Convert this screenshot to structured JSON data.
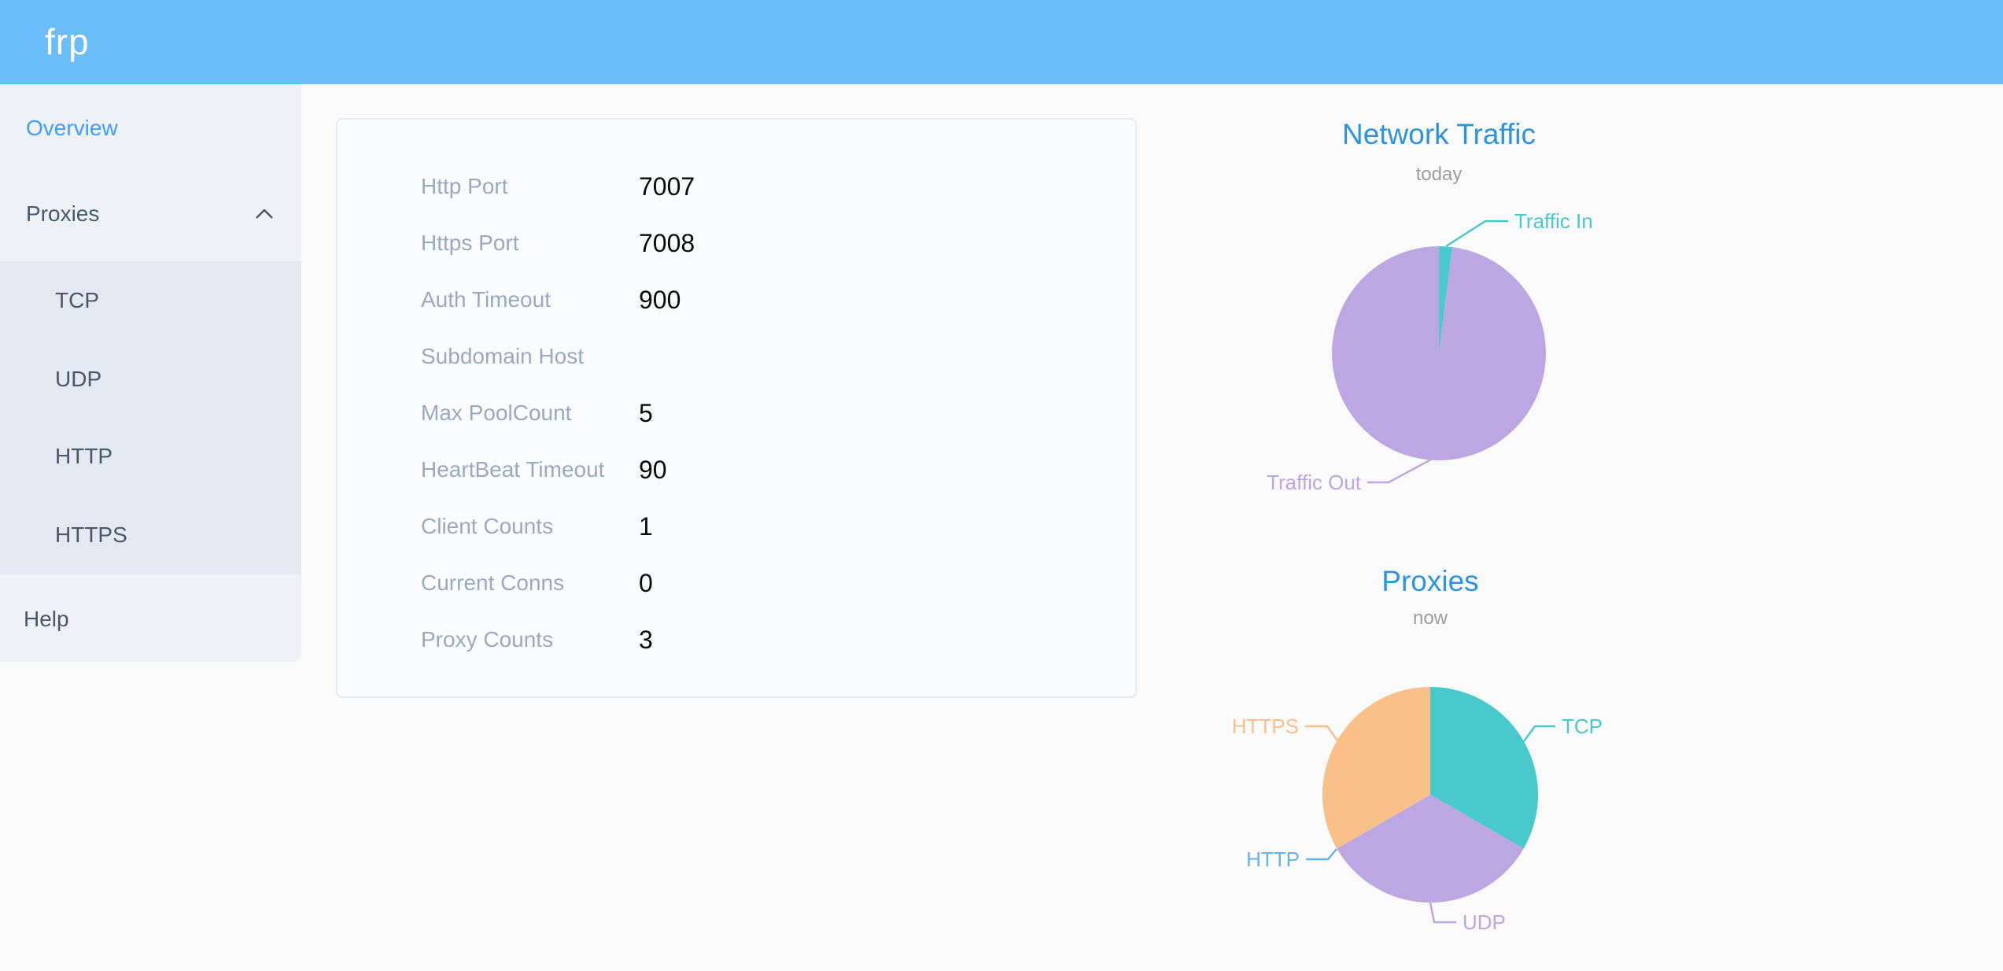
{
  "header": {
    "logo": "frp"
  },
  "sidebar": {
    "items": [
      {
        "label": "Overview",
        "active": true
      },
      {
        "label": "Proxies",
        "expanded": true
      },
      {
        "label": "TCP"
      },
      {
        "label": "UDP"
      },
      {
        "label": "HTTP"
      },
      {
        "label": "HTTPS"
      },
      {
        "label": "Help"
      }
    ]
  },
  "server_info": {
    "rows": [
      {
        "label": "Http Port",
        "value": "7007"
      },
      {
        "label": "Https Port",
        "value": "7008"
      },
      {
        "label": "Auth Timeout",
        "value": "900"
      },
      {
        "label": "Subdomain Host",
        "value": ""
      },
      {
        "label": "Max PoolCount",
        "value": "5"
      },
      {
        "label": "HeartBeat Timeout",
        "value": "90"
      },
      {
        "label": "Client Counts",
        "value": "1"
      },
      {
        "label": "Current Conns",
        "value": "0"
      },
      {
        "label": "Proxy Counts",
        "value": "3"
      }
    ]
  },
  "chart_data": [
    {
      "type": "pie",
      "title": "Network Traffic",
      "subtitle": "today",
      "legend_position": "none",
      "series": [
        {
          "name": "Traffic In",
          "value": 2,
          "color": "#49c9cc"
        },
        {
          "name": "Traffic Out",
          "value": 98,
          "color": "#bda7e2"
        }
      ]
    },
    {
      "type": "pie",
      "title": "Proxies",
      "subtitle": "now",
      "legend_position": "none",
      "series": [
        {
          "name": "TCP",
          "value": 1,
          "color": "#49c9cc"
        },
        {
          "name": "UDP",
          "value": 1,
          "color": "#bda7e2"
        },
        {
          "name": "HTTP",
          "value": 0,
          "color": "#64b2f2"
        },
        {
          "name": "HTTPS",
          "value": 1,
          "color": "#f9c089"
        }
      ]
    }
  ],
  "colors": {
    "header_bg": "#6abdf8",
    "sidebar_bg": "#eef1f6",
    "submenu_bg": "#e4e8f1",
    "menu_text": "#48576a",
    "menu_active": "#409eff",
    "page_bg": "#fafafa",
    "card_border": "#e4e9f4",
    "config_label": "#99a9bf",
    "config_value": "#0a0a0a",
    "chart_title": "#2e93de",
    "chart_subtitle": "#9e9e9e"
  }
}
